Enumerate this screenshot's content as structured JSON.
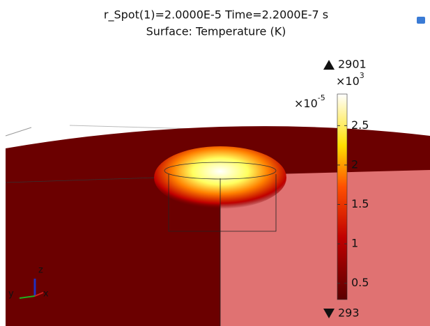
{
  "header": {
    "title": "r_Spot(1)=2.0000E-5 Time=2.2000E-7 s",
    "subtitle": "Surface: Temperature (K)"
  },
  "colorbar": {
    "max": 2901,
    "min": 293,
    "multiplier": {
      "base": "×10",
      "exponent": "3"
    },
    "ticks": [
      {
        "value": 500,
        "label": "0.5"
      },
      {
        "value": 1000,
        "label": "1"
      },
      {
        "value": 1500,
        "label": "1.5"
      },
      {
        "value": 2000,
        "label": "2"
      },
      {
        "value": 2500,
        "label": "2.5"
      }
    ]
  },
  "axis_scale": {
    "base": "×10",
    "exponent": "-5"
  },
  "triad": {
    "x": "x",
    "y": "y",
    "z": "z"
  }
}
